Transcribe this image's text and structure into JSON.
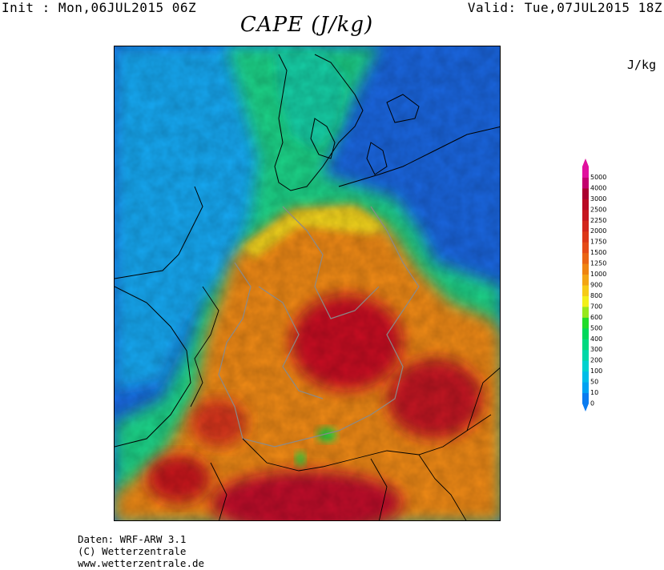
{
  "header": {
    "init": "Init : Mon,06JUL2015 06Z",
    "valid": "Valid: Tue,07JUL2015 18Z",
    "title": "CAPE (J/kg)",
    "unit": "J/kg"
  },
  "legend": {
    "levels": [
      "0",
      "10",
      "50",
      "100",
      "200",
      "300",
      "400",
      "500",
      "600",
      "700",
      "800",
      "900",
      "1000",
      "1250",
      "1500",
      "1750",
      "2000",
      "2250",
      "2500",
      "3000",
      "4000",
      "5000"
    ],
    "colors": [
      "#0b7cf0",
      "#00a2f2",
      "#00bde8",
      "#00d2cf",
      "#00d8a8",
      "#00d97f",
      "#00d85a",
      "#21dc2a",
      "#98e81c",
      "#f2f01a",
      "#f6cb17",
      "#f3a514",
      "#ef8410",
      "#ea6513",
      "#e54b17",
      "#dc3718",
      "#d2261c",
      "#c6171f",
      "#b90a24",
      "#aa0030",
      "#c2006e",
      "#e0109e"
    ]
  },
  "map": {
    "description_colors": {
      "sea": "#1f6fe0",
      "land_low": "#2fd28a",
      "land_mid": "#f08a12",
      "land_high": "#c20a22"
    }
  },
  "footer": {
    "line1": "Daten: WRF-ARW 3.1",
    "line2": "(C) Wetterzentrale",
    "line3": "www.wetterzentrale.de"
  }
}
